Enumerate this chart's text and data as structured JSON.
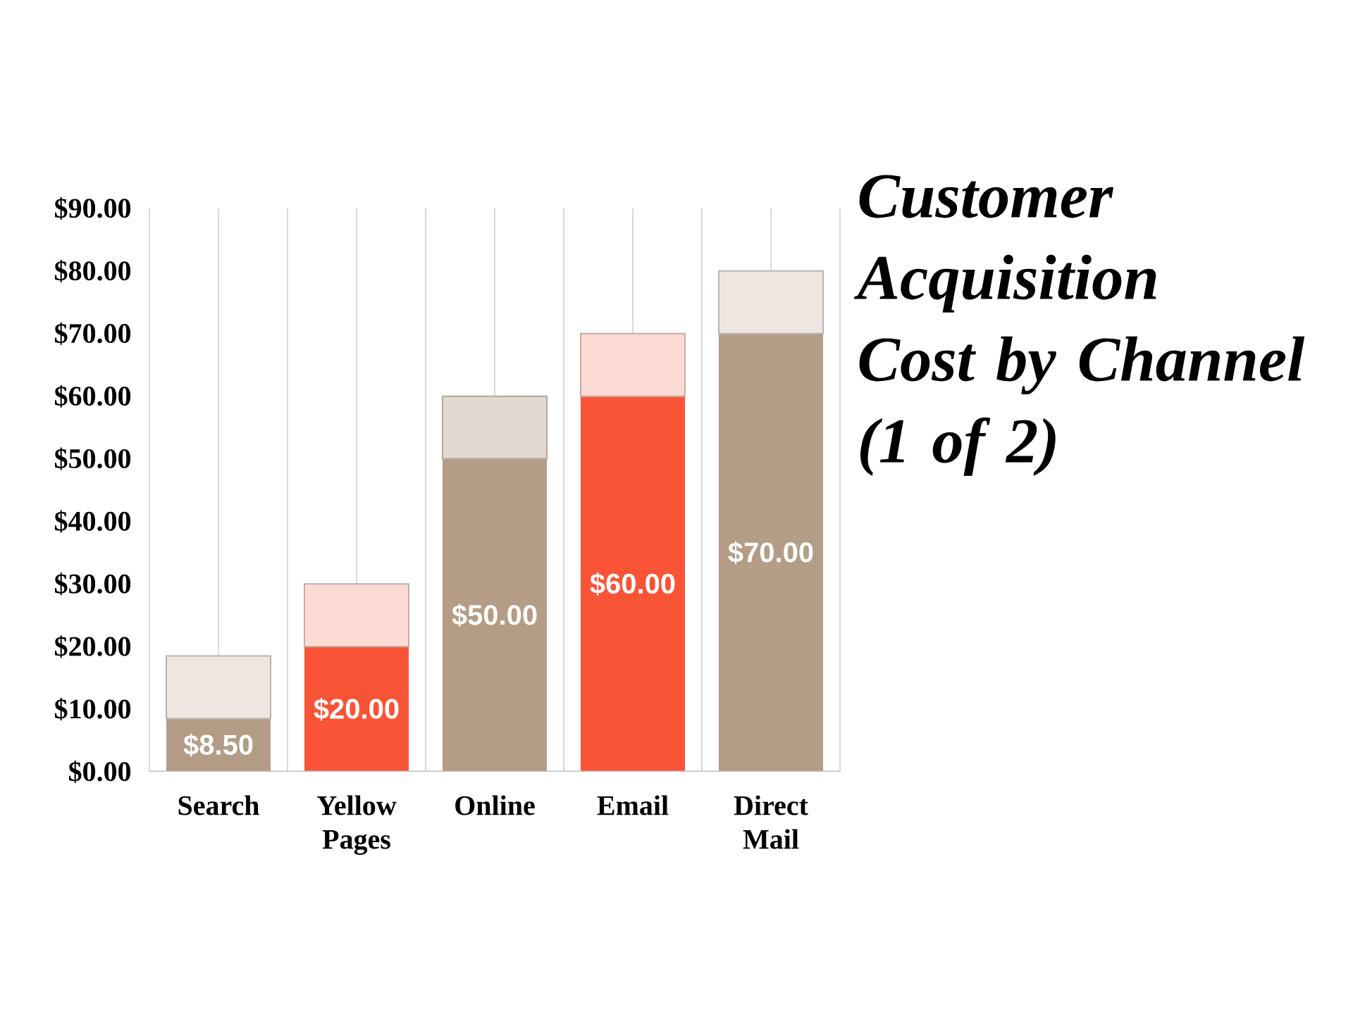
{
  "chart_data": {
    "type": "bar",
    "title": "Customer Acquisition Cost by Channel (1 of 2)",
    "categories": [
      "Search",
      "Yellow Pages",
      "Online",
      "Email",
      "Direct Mail"
    ],
    "stacked": true,
    "series": [
      {
        "colors": [
          "#b49c86",
          "#f95436",
          "#b49c86",
          "#f95436",
          "#b49c86"
        ],
        "values": [
          8.5,
          20,
          50,
          60,
          70
        ],
        "value_labels": [
          "$8.50",
          "$20.00",
          "$50.00",
          "$60.00",
          "$70.00"
        ]
      },
      {
        "colors": [
          "#ede6e1",
          "#fddbd4",
          "#e3d9d1",
          "#fddbd4",
          "#ede6e1"
        ],
        "values": [
          10,
          10,
          10,
          10,
          10
        ]
      }
    ],
    "ylim": [
      0,
      90
    ],
    "yticks": [
      {
        "value": 0,
        "label": "$0.00"
      },
      {
        "value": 10,
        "label": "$10.00"
      },
      {
        "value": 20,
        "label": "$20.00"
      },
      {
        "value": 30,
        "label": "$30.00"
      },
      {
        "value": 40,
        "label": "$40.00"
      },
      {
        "value": 50,
        "label": "$50.00"
      },
      {
        "value": 60,
        "label": "$60.00"
      },
      {
        "value": 70,
        "label": "$70.00"
      },
      {
        "value": 80,
        "label": "$80.00"
      },
      {
        "value": 90,
        "label": "$90.00"
      }
    ],
    "grid": "x"
  }
}
